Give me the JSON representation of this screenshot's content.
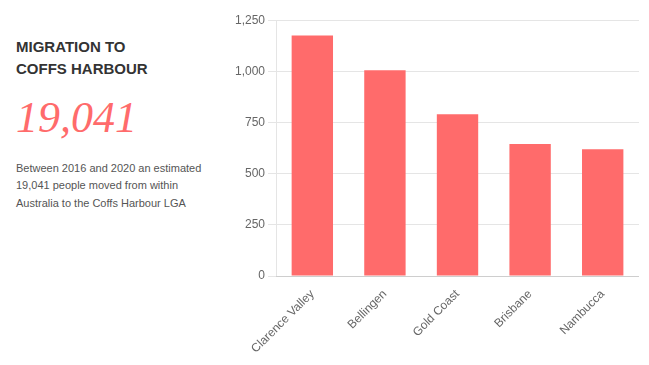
{
  "chart_data": {
    "type": "bar",
    "title": [
      "MIGRATION TO",
      "COFFS HARBOUR"
    ],
    "annotations": [
      "19,041",
      "Between 2016 and 2020 an estimated\n19,041 people moved from within\nAustralia to the Coffs Harbour LGA"
    ],
    "categories": [
      "Clarence Valley",
      "Bellingen",
      "Gold Coast",
      "Brisbane",
      "Nambucca"
    ],
    "values": [
      1175,
      1005,
      790,
      645,
      620
    ],
    "color": "#ff6b6b",
    "ylim": [
      0,
      1250
    ],
    "yticks": [
      0,
      250,
      500,
      750,
      {
        "value": 1000,
        "label": "1,000"
      },
      {
        "value": 1250,
        "label": "1,250"
      }
    ],
    "grid": true
  }
}
